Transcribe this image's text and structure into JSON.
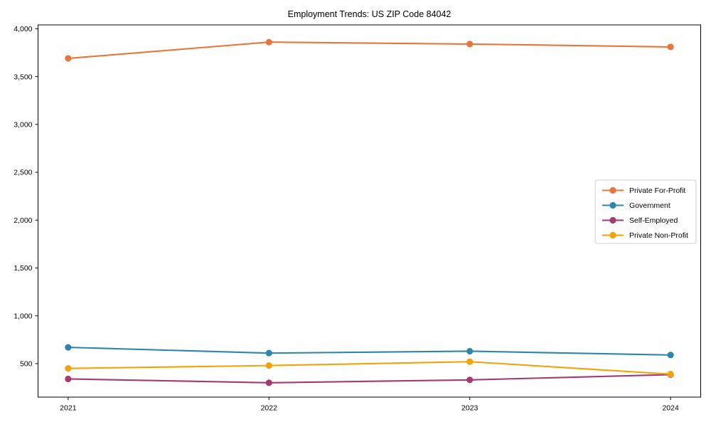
{
  "figure": {
    "title": "Employment Trends: US ZIP Code 84042"
  },
  "chart_data": {
    "type": "line",
    "title": "Employment Trends: US ZIP Code 84042",
    "x": [
      2021,
      2022,
      2023,
      2024
    ],
    "x_tick_labels": [
      "2021",
      "2022",
      "2023",
      "2024"
    ],
    "series": [
      {
        "name": "Private For-Profit",
        "color": "#E8763B",
        "values": [
          3690,
          3860,
          3840,
          3810
        ]
      },
      {
        "name": "Government",
        "color": "#2E86AB",
        "values": [
          670,
          610,
          630,
          590
        ]
      },
      {
        "name": "Self-Employed",
        "color": "#A23B72",
        "values": [
          340,
          300,
          330,
          385
        ]
      },
      {
        "name": "Private Non-Profit",
        "color": "#F0A30A",
        "values": [
          450,
          480,
          520,
          390
        ]
      }
    ],
    "xlabel": "",
    "ylabel": "",
    "yticks": [
      500,
      1000,
      1500,
      2000,
      2500,
      3000,
      3500,
      4000
    ],
    "ytick_labels": [
      "500",
      "1,000",
      "1,500",
      "2,000",
      "2,500",
      "3,000",
      "3,500",
      "4,000"
    ],
    "xlim": [
      2020.85,
      2024.15
    ],
    "ylim": [
      150,
      4040
    ],
    "grid": false,
    "marker": "circle",
    "legend": {
      "position": "right-middle",
      "entries": [
        "Private For-Profit",
        "Government",
        "Self-Employed",
        "Private Non-Profit"
      ]
    }
  }
}
